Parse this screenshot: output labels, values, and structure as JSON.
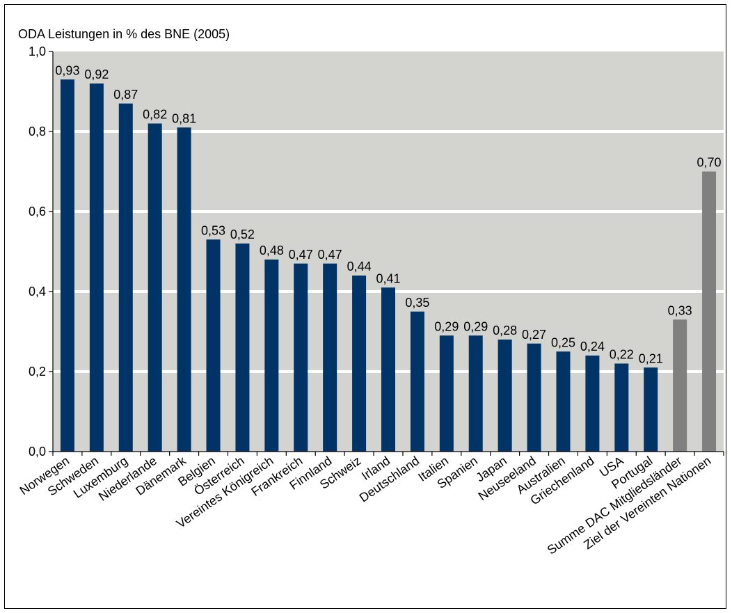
{
  "chart_data": {
    "type": "bar",
    "title": "ODA Leistungen in % des BNE (2005)",
    "xlabel": "",
    "ylabel": "",
    "ylim": [
      0,
      1.0
    ],
    "yticks": [
      0.0,
      0.2,
      0.4,
      0.6,
      0.8,
      1.0
    ],
    "ytick_labels": [
      "0,0",
      "0,2",
      "0,4",
      "0,6",
      "0,8",
      "1,0"
    ],
    "grid": true,
    "legend": "none",
    "colors": {
      "country": "#003366",
      "aggregate": "#808080",
      "plot_bg": "#d3d3cf",
      "grid": "#ffffff"
    },
    "bars": [
      {
        "category": "Norwegen",
        "value": 0.93,
        "label": "0,93",
        "group": "country"
      },
      {
        "category": "Schweden",
        "value": 0.92,
        "label": "0,92",
        "group": "country"
      },
      {
        "category": "Luxemburg",
        "value": 0.87,
        "label": "0,87",
        "group": "country"
      },
      {
        "category": "Niederlande",
        "value": 0.82,
        "label": "0,82",
        "group": "country"
      },
      {
        "category": "Dänemark",
        "value": 0.81,
        "label": "0,81",
        "group": "country"
      },
      {
        "category": "Belgien",
        "value": 0.53,
        "label": "0,53",
        "group": "country"
      },
      {
        "category": "Österreich",
        "value": 0.52,
        "label": "0,52",
        "group": "country"
      },
      {
        "category": "Vereintes Königreich",
        "value": 0.48,
        "label": "0,48",
        "group": "country"
      },
      {
        "category": "Frankreich",
        "value": 0.47,
        "label": "0,47",
        "group": "country"
      },
      {
        "category": "Finnland",
        "value": 0.47,
        "label": "0,47",
        "group": "country"
      },
      {
        "category": "Schweiz",
        "value": 0.44,
        "label": "0,44",
        "group": "country"
      },
      {
        "category": "Irland",
        "value": 0.41,
        "label": "0,41",
        "group": "country"
      },
      {
        "category": "Deutschland",
        "value": 0.35,
        "label": "0,35",
        "group": "country"
      },
      {
        "category": "Italien",
        "value": 0.29,
        "label": "0,29",
        "group": "country"
      },
      {
        "category": "Spanien",
        "value": 0.29,
        "label": "0,29",
        "group": "country"
      },
      {
        "category": "Japan",
        "value": 0.28,
        "label": "0,28",
        "group": "country"
      },
      {
        "category": "Neuseeland",
        "value": 0.27,
        "label": "0,27",
        "group": "country"
      },
      {
        "category": "Australien",
        "value": 0.25,
        "label": "0,25",
        "group": "country"
      },
      {
        "category": "Griechenland",
        "value": 0.24,
        "label": "0,24",
        "group": "country"
      },
      {
        "category": "USA",
        "value": 0.22,
        "label": "0,22",
        "group": "country"
      },
      {
        "category": "Portugal",
        "value": 0.21,
        "label": "0,21",
        "group": "country"
      },
      {
        "category": "Summe DAC Mitgliedsländer",
        "value": 0.33,
        "label": "0,33",
        "group": "aggregate"
      },
      {
        "category": "Ziel der Vereinten Nationen",
        "value": 0.7,
        "label": "0,70",
        "group": "aggregate"
      }
    ]
  }
}
